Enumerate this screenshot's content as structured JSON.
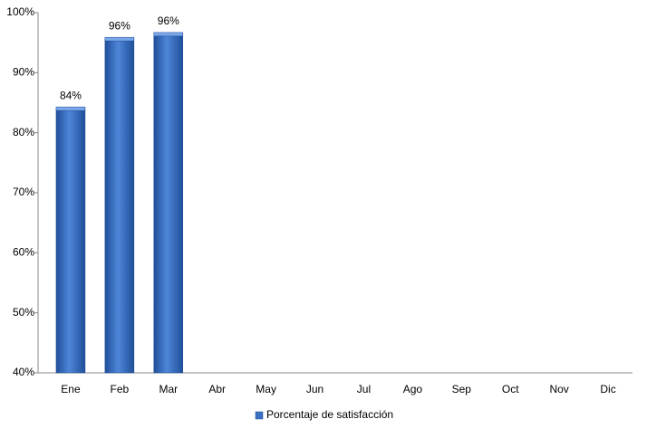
{
  "chart_data": {
    "type": "bar",
    "categories": [
      "Ene",
      "Feb",
      "Mar",
      "Abr",
      "May",
      "Jun",
      "Jul",
      "Ago",
      "Sep",
      "Oct",
      "Nov",
      "Dic"
    ],
    "series": [
      {
        "name": "Porcentaje de satisfacción",
        "color": "#3a6fc4",
        "values": [
          84,
          95.6,
          96.4,
          null,
          null,
          null,
          null,
          null,
          null,
          null,
          null,
          null
        ],
        "value_labels": [
          "84%",
          "96%",
          "96%",
          null,
          null,
          null,
          null,
          null,
          null,
          null,
          null,
          null
        ]
      }
    ],
    "ylim": [
      40,
      100
    ],
    "yticks": [
      {
        "value": 40,
        "label": "40%"
      },
      {
        "value": 50,
        "label": "50%"
      },
      {
        "value": 60,
        "label": "60%"
      },
      {
        "value": 70,
        "label": "70%"
      },
      {
        "value": 80,
        "label": "80%"
      },
      {
        "value": 90,
        "label": "90%"
      },
      {
        "value": 100,
        "label": "100%"
      }
    ],
    "grid": false,
    "legend": "bottom"
  }
}
